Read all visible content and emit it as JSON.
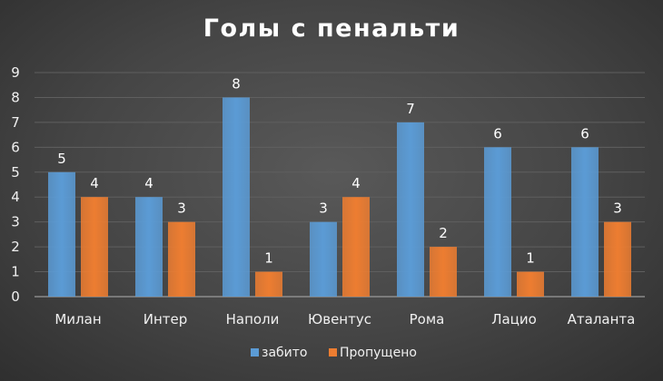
{
  "chart_data": {
    "type": "bar",
    "title": "Голы с пенальти",
    "categories": [
      "Милан",
      "Интер",
      "Наполи",
      "Ювентус",
      "Рома",
      "Лацио",
      "Аталанта"
    ],
    "series": [
      {
        "name": "забито",
        "values": [
          5,
          4,
          8,
          3,
          7,
          6,
          6
        ],
        "color": "#5b9bd5"
      },
      {
        "name": "Пропущено",
        "values": [
          4,
          3,
          1,
          4,
          2,
          1,
          3
        ],
        "color": "#ed7d31"
      }
    ],
    "ylim": [
      0,
      9
    ],
    "yticks": [
      0,
      1,
      2,
      3,
      4,
      5,
      6,
      7,
      8,
      9
    ],
    "grid": true,
    "legend_position": "bottom"
  }
}
